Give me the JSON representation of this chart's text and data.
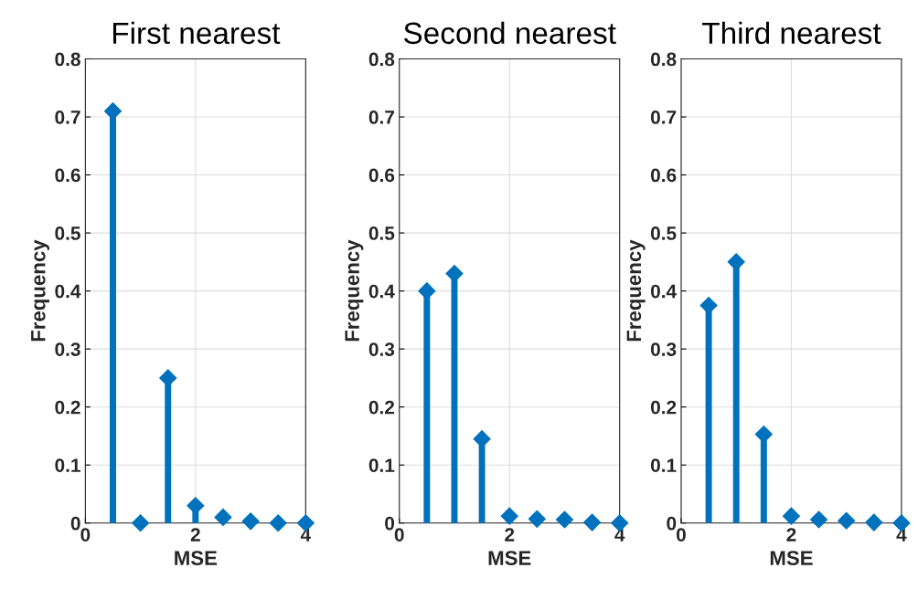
{
  "chart_data": [
    {
      "type": "lollipop",
      "title": "First nearest",
      "xlabel": "MSE",
      "ylabel": "Frequency",
      "x": [
        0.5,
        1,
        1.5,
        2,
        2.5,
        3,
        3.5,
        4
      ],
      "values": [
        0.71,
        0,
        0.25,
        0.03,
        0.01,
        0.003,
        0,
        0
      ],
      "color": "#0072bd",
      "xlim": [
        0,
        4
      ],
      "xticks": [
        0,
        2,
        4
      ],
      "ylim": [
        0,
        0.8
      ],
      "yticks": [
        0,
        0.1,
        0.2,
        0.3,
        0.4,
        0.5,
        0.6,
        0.7,
        0.8
      ],
      "grid": true,
      "marker": "diamond"
    },
    {
      "type": "lollipop",
      "title": "Second nearest",
      "xlabel": "MSE",
      "ylabel": "Frequency",
      "x": [
        0.5,
        1,
        1.5,
        2,
        2.5,
        3,
        3.5,
        4
      ],
      "values": [
        0.4,
        0.43,
        0.145,
        0.012,
        0.007,
        0.006,
        0.001,
        0
      ],
      "color": "#0072bd",
      "xlim": [
        0,
        4
      ],
      "xticks": [
        0,
        2,
        4
      ],
      "ylim": [
        0,
        0.8
      ],
      "yticks": [
        0,
        0.1,
        0.2,
        0.3,
        0.4,
        0.5,
        0.6,
        0.7,
        0.8
      ],
      "grid": true,
      "marker": "diamond"
    },
    {
      "type": "lollipop",
      "title": "Third nearest",
      "xlabel": "MSE",
      "ylabel": "Frequency",
      "x": [
        0.5,
        1,
        1.5,
        2,
        2.5,
        3,
        3.5,
        4
      ],
      "values": [
        0.375,
        0.45,
        0.153,
        0.012,
        0.006,
        0.004,
        0.001,
        0
      ],
      "color": "#0072bd",
      "xlim": [
        0,
        4
      ],
      "xticks": [
        0,
        2,
        4
      ],
      "ylim": [
        0,
        0.8
      ],
      "yticks": [
        0,
        0.1,
        0.2,
        0.3,
        0.4,
        0.5,
        0.6,
        0.7,
        0.8
      ],
      "grid": true,
      "marker": "diamond"
    }
  ]
}
